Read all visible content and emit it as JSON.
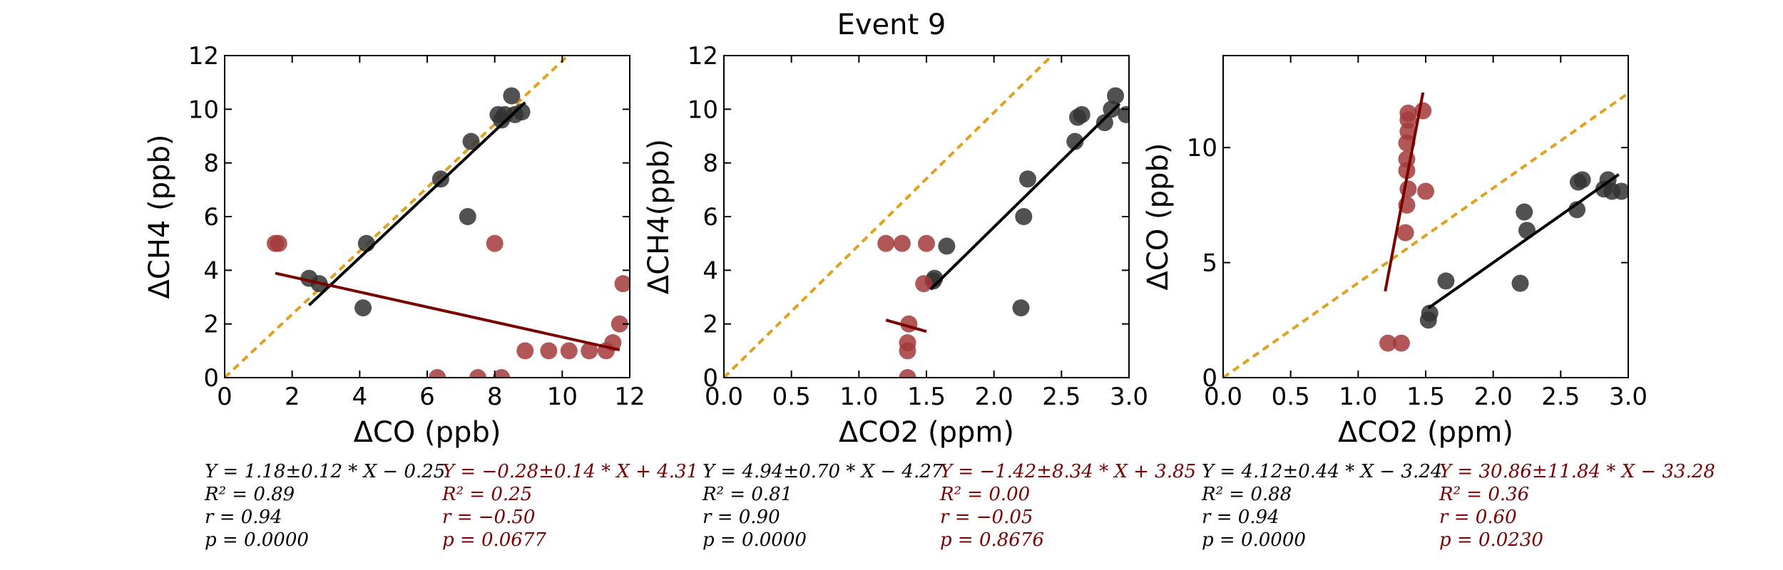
{
  "title": "Event 9",
  "colors": {
    "black_series": "#333333",
    "red_series": "#a33a3a",
    "black_fit": "#000000",
    "red_fit": "#7a0000",
    "ref_line": "#e0a020"
  },
  "chart_data": [
    {
      "type": "scatter",
      "xlabel": "ΔCO (ppb)",
      "ylabel": "ΔCH4 (ppb)",
      "xlim": [
        0,
        12
      ],
      "ylim": [
        0,
        12
      ],
      "xticks": [
        "0",
        "2",
        "4",
        "6",
        "8",
        "10",
        "12"
      ],
      "yticks": [
        "0",
        "2",
        "4",
        "6",
        "8",
        "10",
        "12"
      ],
      "series": [
        {
          "color": "black",
          "points": [
            [
              2.5,
              3.7
            ],
            [
              2.8,
              3.5
            ],
            [
              4.1,
              2.6
            ],
            [
              4.2,
              5.0
            ],
            [
              6.4,
              7.4
            ],
            [
              7.2,
              6.0
            ],
            [
              7.3,
              8.8
            ],
            [
              8.1,
              9.8
            ],
            [
              8.2,
              9.6
            ],
            [
              8.3,
              9.8
            ],
            [
              8.5,
              10.5
            ],
            [
              8.6,
              9.8
            ],
            [
              8.8,
              9.9
            ]
          ]
        },
        {
          "color": "red",
          "points": [
            [
              1.5,
              5.0
            ],
            [
              1.6,
              5.0
            ],
            [
              6.3,
              0.0
            ],
            [
              7.5,
              0.0
            ],
            [
              8.0,
              5.0
            ],
            [
              8.2,
              0.0
            ],
            [
              8.9,
              1.0
            ],
            [
              9.6,
              1.0
            ],
            [
              10.2,
              1.0
            ],
            [
              10.8,
              1.0
            ],
            [
              11.3,
              1.0
            ],
            [
              11.5,
              1.3
            ],
            [
              11.7,
              2.0
            ],
            [
              11.8,
              3.5
            ]
          ]
        }
      ],
      "fits": [
        {
          "color": "black",
          "x": [
            2.5,
            8.9
          ]
        },
        {
          "color": "red",
          "x": [
            1.5,
            11.7
          ]
        }
      ],
      "ref_line": {
        "slope": 1.18,
        "intercept": 0
      },
      "stats": {
        "black": [
          "Y = 1.18±0.12 * X − 0.25",
          "R² = 0.89",
          "r = 0.94",
          "p = 0.0000"
        ],
        "red": [
          "Y = −0.28±0.14 * X + 4.31",
          "R² = 0.25",
          "r = −0.50",
          "p = 0.0677"
        ]
      },
      "fit_params": {
        "black": [
          1.18,
          -0.25
        ],
        "red": [
          -0.28,
          4.31
        ]
      }
    },
    {
      "type": "scatter",
      "xlabel": "ΔCO2 (ppm)",
      "ylabel": "ΔCH4(ppb)",
      "xlim": [
        0,
        3
      ],
      "ylim": [
        0,
        12
      ],
      "xticks": [
        "0.0",
        "0.5",
        "1.0",
        "1.5",
        "2.0",
        "2.5",
        "3.0"
      ],
      "yticks": [
        "0",
        "2",
        "4",
        "6",
        "8",
        "10",
        "12"
      ],
      "series": [
        {
          "color": "black",
          "points": [
            [
              1.55,
              3.6
            ],
            [
              1.56,
              3.7
            ],
            [
              1.65,
              4.9
            ],
            [
              2.2,
              2.6
            ],
            [
              2.22,
              6.0
            ],
            [
              2.25,
              7.4
            ],
            [
              2.6,
              8.8
            ],
            [
              2.62,
              9.7
            ],
            [
              2.65,
              9.8
            ],
            [
              2.82,
              9.5
            ],
            [
              2.87,
              10.0
            ],
            [
              2.9,
              10.5
            ],
            [
              2.98,
              9.8
            ]
          ]
        },
        {
          "color": "red",
          "points": [
            [
              1.2,
              5.0
            ],
            [
              1.32,
              5.0
            ],
            [
              1.5,
              5.0
            ],
            [
              1.48,
              3.5
            ],
            [
              1.37,
              2.0
            ],
            [
              1.36,
              1.3
            ],
            [
              1.36,
              1.0
            ],
            [
              1.36,
              0.0
            ]
          ]
        }
      ],
      "fits": [
        {
          "color": "black",
          "x": [
            1.53,
            2.93
          ]
        },
        {
          "color": "red",
          "x": [
            1.2,
            1.5
          ]
        }
      ],
      "ref_line": {
        "slope": 4.94,
        "intercept": 0
      },
      "stats": {
        "black": [
          "Y = 4.94±0.70 * X − 4.27",
          "R² = 0.81",
          "r = 0.90",
          "p = 0.0000"
        ],
        "red": [
          "Y = −1.42±8.34 * X + 3.85",
          "R² = 0.00",
          "r = −0.05",
          "p = 0.8676"
        ]
      },
      "fit_params": {
        "black": [
          4.94,
          -4.27
        ],
        "red": [
          -1.42,
          3.85
        ]
      }
    },
    {
      "type": "scatter",
      "xlabel": "ΔCO2 (ppm)",
      "ylabel": "ΔCO (ppb)",
      "xlim": [
        0,
        3
      ],
      "ylim": [
        0,
        14
      ],
      "xticks": [
        "0.0",
        "0.5",
        "1.0",
        "1.5",
        "2.0",
        "2.5",
        "3.0"
      ],
      "yticks": [
        "0",
        "5",
        "10"
      ],
      "ytick_values": [
        0,
        5,
        10
      ],
      "series": [
        {
          "color": "black",
          "points": [
            [
              1.52,
              2.5
            ],
            [
              1.53,
              2.8
            ],
            [
              1.65,
              4.2
            ],
            [
              2.2,
              4.1
            ],
            [
              2.23,
              7.2
            ],
            [
              2.25,
              6.4
            ],
            [
              2.62,
              7.3
            ],
            [
              2.63,
              8.5
            ],
            [
              2.66,
              8.6
            ],
            [
              2.82,
              8.2
            ],
            [
              2.85,
              8.6
            ],
            [
              2.88,
              8.1
            ],
            [
              2.95,
              8.1
            ]
          ]
        },
        {
          "color": "red",
          "points": [
            [
              1.22,
              1.5
            ],
            [
              1.32,
              1.5
            ],
            [
              1.35,
              6.3
            ],
            [
              1.36,
              7.5
            ],
            [
              1.37,
              8.2
            ],
            [
              1.36,
              9.0
            ],
            [
              1.36,
              9.5
            ],
            [
              1.36,
              10.2
            ],
            [
              1.37,
              10.7
            ],
            [
              1.37,
              11.2
            ],
            [
              1.37,
              11.5
            ],
            [
              1.48,
              11.6
            ],
            [
              1.5,
              8.1
            ]
          ]
        }
      ],
      "fits": [
        {
          "color": "black",
          "x": [
            1.52,
            2.93
          ]
        },
        {
          "color": "red",
          "x": [
            1.2,
            1.48
          ]
        }
      ],
      "ref_line": {
        "slope": 4.12,
        "intercept": 0
      },
      "stats": {
        "black": [
          "Y = 4.12±0.44 * X − 3.24",
          "R² = 0.88",
          "r = 0.94",
          "p = 0.0000"
        ],
        "red": [
          "Y = 30.86±11.84 * X − 33.28",
          "R² = 0.36",
          "r = 0.60",
          "p = 0.0230"
        ]
      },
      "fit_params": {
        "black": [
          4.12,
          -3.24
        ],
        "red": [
          30.86,
          -33.28
        ]
      }
    }
  ]
}
